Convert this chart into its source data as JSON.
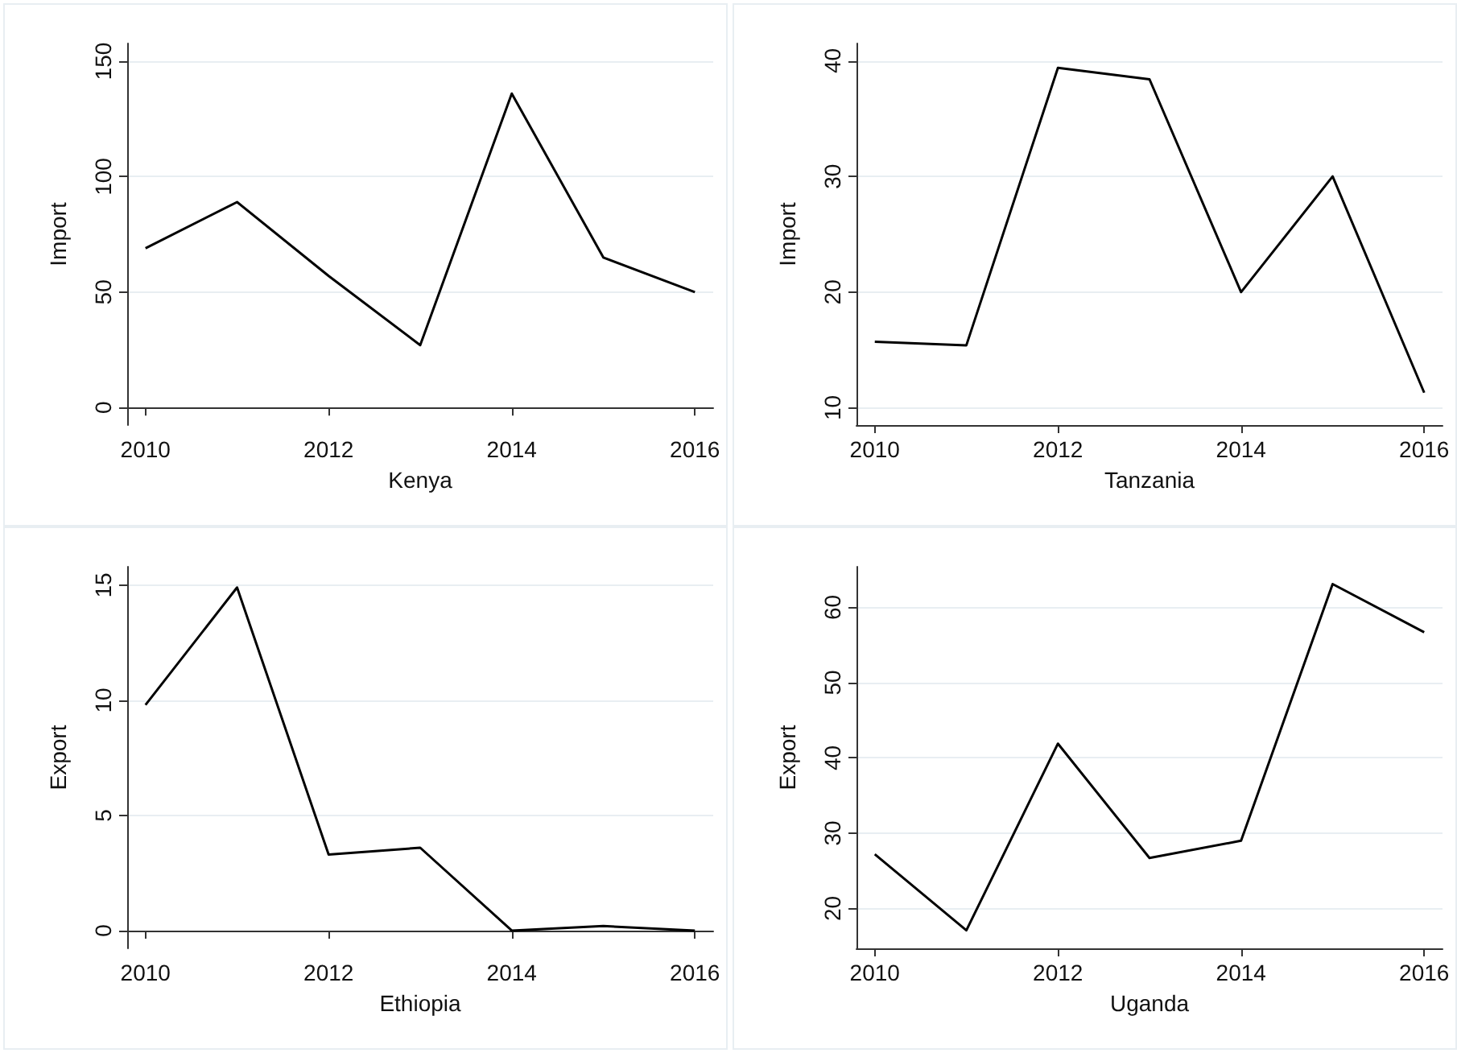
{
  "chart_data": [
    {
      "type": "line",
      "xlabel": "Kenya",
      "ylabel": "Import",
      "x": [
        2010,
        2011,
        2012,
        2013,
        2014,
        2015,
        2016
      ],
      "series": [
        {
          "color": "#000000",
          "values": [
            69,
            89,
            57,
            27,
            136,
            65,
            50
          ]
        }
      ],
      "xlim": [
        2009.8,
        2016.2
      ],
      "xticks": [
        2010,
        2012,
        2014,
        2016
      ],
      "ylim": [
        -7.6,
        157.7
      ],
      "yticks": [
        0,
        50,
        100,
        150
      ],
      "grid": "y",
      "marker": "none"
    },
    {
      "type": "line",
      "xlabel": "Tanzania",
      "ylabel": "Import",
      "x": [
        2010,
        2011,
        2012,
        2013,
        2014,
        2015,
        2016
      ],
      "series": [
        {
          "color": "#000000",
          "values": [
            15.7,
            15.4,
            39.4,
            38.4,
            20,
            30,
            11.3
          ]
        }
      ],
      "xlim": [
        2009.8,
        2016.2
      ],
      "xticks": [
        2010,
        2012,
        2014,
        2016
      ],
      "ylim": [
        8.5,
        41.5
      ],
      "yticks": [
        10,
        20,
        30,
        40
      ],
      "grid": "y",
      "marker": "none"
    },
    {
      "type": "line",
      "xlabel": "Ethiopia",
      "ylabel": "Export",
      "x": [
        2010,
        2011,
        2012,
        2013,
        2014,
        2015,
        2016
      ],
      "series": [
        {
          "color": "#000000",
          "values": [
            9.8,
            14.9,
            3.3,
            3.6,
            0,
            0.2,
            0
          ]
        }
      ],
      "xlim": [
        2009.8,
        2016.2
      ],
      "xticks": [
        2010,
        2012,
        2014,
        2016
      ],
      "ylim": [
        -0.77,
        15.8
      ],
      "yticks": [
        0,
        5,
        10,
        15
      ],
      "grid": "y",
      "marker": "none"
    },
    {
      "type": "line",
      "xlabel": "Uganda",
      "ylabel": "Export",
      "x": [
        2010,
        2011,
        2012,
        2013,
        2014,
        2015,
        2016
      ],
      "series": [
        {
          "color": "#000000",
          "values": [
            27.2,
            17.1,
            41.9,
            26.7,
            29,
            63.1,
            56.7
          ]
        }
      ],
      "xlim": [
        2009.8,
        2016.2
      ],
      "xticks": [
        2010,
        2012,
        2014,
        2016
      ],
      "ylim": [
        14.7,
        65.4
      ],
      "yticks": [
        20,
        30,
        40,
        50,
        60
      ],
      "grid": "y",
      "marker": "none"
    }
  ]
}
